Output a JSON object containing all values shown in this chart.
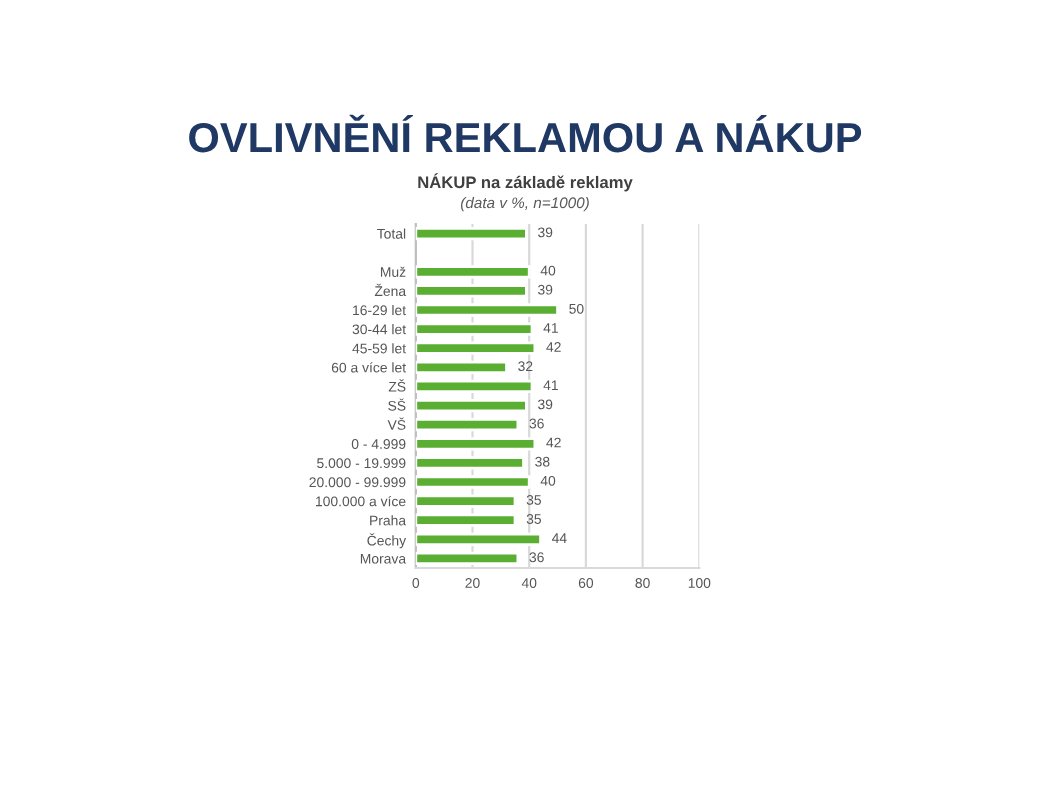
{
  "chart_data": {
    "type": "bar",
    "orientation": "horizontal",
    "title": "OVLIVNĚNÍ REKLAMOU A NÁKUP",
    "subtitle": "NÁKUP na základě reklamy",
    "annotations": [
      "(data v %, n=1000)"
    ],
    "categories": [
      "Total",
      null,
      "Muž",
      "Žena",
      "16-29 let",
      "30-44 let",
      "45-59 let",
      "60 a více let",
      "ZŠ",
      "SŠ",
      "VŠ",
      "0 - 4.999",
      "5.000 - 19.999",
      "20.000 - 99.999",
      "100.000 a více",
      "Praha",
      "Čechy",
      "Morava"
    ],
    "values": [
      39,
      null,
      40,
      39,
      50,
      41,
      42,
      32,
      41,
      39,
      36,
      42,
      38,
      40,
      35,
      35,
      44,
      36
    ],
    "color": "#5aae32",
    "data_labels": true,
    "xlim": [
      0,
      100
    ],
    "xticks": [
      0,
      20,
      40,
      60,
      80,
      100
    ],
    "grid": "x"
  }
}
